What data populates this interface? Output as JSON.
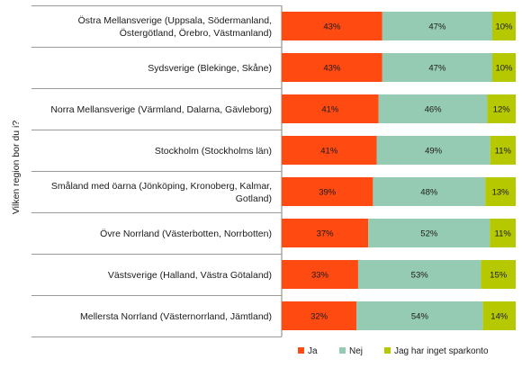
{
  "chart_data": {
    "type": "bar",
    "orientation": "horizontal",
    "stacked": "percent",
    "ylabel": "Vilken region bor du i?",
    "categories": [
      [
        "Östra Mellansverige (Uppsala, Södermanland,",
        "Östergötland, Örebro, Västmanland)"
      ],
      [
        "Sydsverige (Blekinge, Skåne)"
      ],
      [
        "Norra Mellansverige (Värmland, Dalarna, Gävleborg)"
      ],
      [
        "Stockholm (Stockholms län)"
      ],
      [
        "Småland med öarna (Jönköping, Kronoberg, Kalmar,",
        "Gotland)"
      ],
      [
        "Övre Norrland (Västerbotten, Norrbotten)"
      ],
      [
        "Västsverige (Halland, Västra Götaland)"
      ],
      [
        "Mellersta Norrland (Västernorrland, Jämtland)"
      ]
    ],
    "series": [
      {
        "name": "Ja",
        "color": "#FF4A12",
        "values": [
          43,
          43,
          41,
          41,
          39,
          37,
          33,
          32
        ],
        "labels": [
          "43%",
          "43%",
          "41%",
          "41%",
          "39%",
          "37%",
          "33%",
          "32%"
        ]
      },
      {
        "name": "Nej",
        "color": "#96CBB3",
        "values": [
          47,
          47,
          46,
          49,
          48,
          52,
          53,
          54
        ],
        "labels": [
          "47%",
          "47%",
          "46%",
          "49%",
          "48%",
          "52%",
          "53%",
          "54%"
        ]
      },
      {
        "name": "Jag har inget sparkonto",
        "color": "#B5C800",
        "values": [
          10,
          10,
          12,
          11,
          13,
          11,
          15,
          14
        ],
        "labels": [
          "10%",
          "10%",
          "12%",
          "11%",
          "13%",
          "11%",
          "15%",
          "14%"
        ]
      }
    ],
    "legend_position": "bottom",
    "grid": false
  }
}
